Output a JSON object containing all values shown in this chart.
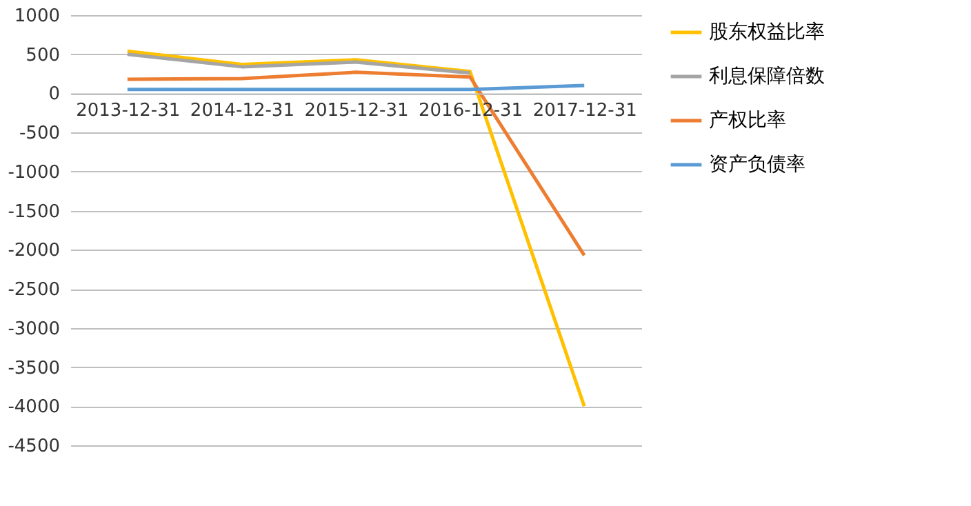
{
  "chart_data": {
    "type": "line",
    "categories": [
      "2013-12-31",
      "2014-12-31",
      "2015-12-31",
      "2016-12-31",
      "2017-12-31"
    ],
    "series": [
      {
        "name": "股东权益比率",
        "color": "#ffc000",
        "values": [
          540,
          370,
          430,
          280,
          -4000
        ]
      },
      {
        "name": "利息保障倍数",
        "color": "#a5a5a5",
        "values": [
          500,
          340,
          400,
          260,
          null
        ]
      },
      {
        "name": "产权比率",
        "color": "#ed7d31",
        "values": [
          180,
          190,
          270,
          210,
          -2070
        ]
      },
      {
        "name": "资产负债率",
        "color": "#5b9bd5",
        "values": [
          50,
          50,
          50,
          50,
          100
        ]
      }
    ],
    "ylim": [
      -4500,
      1000
    ],
    "yticks": [
      -4500,
      -4000,
      -3500,
      -3000,
      -2500,
      -2000,
      -1500,
      -1000,
      -500,
      0,
      500,
      1000
    ],
    "grid": "y",
    "legend": "right",
    "marker": "none",
    "line_style": "solid"
  }
}
